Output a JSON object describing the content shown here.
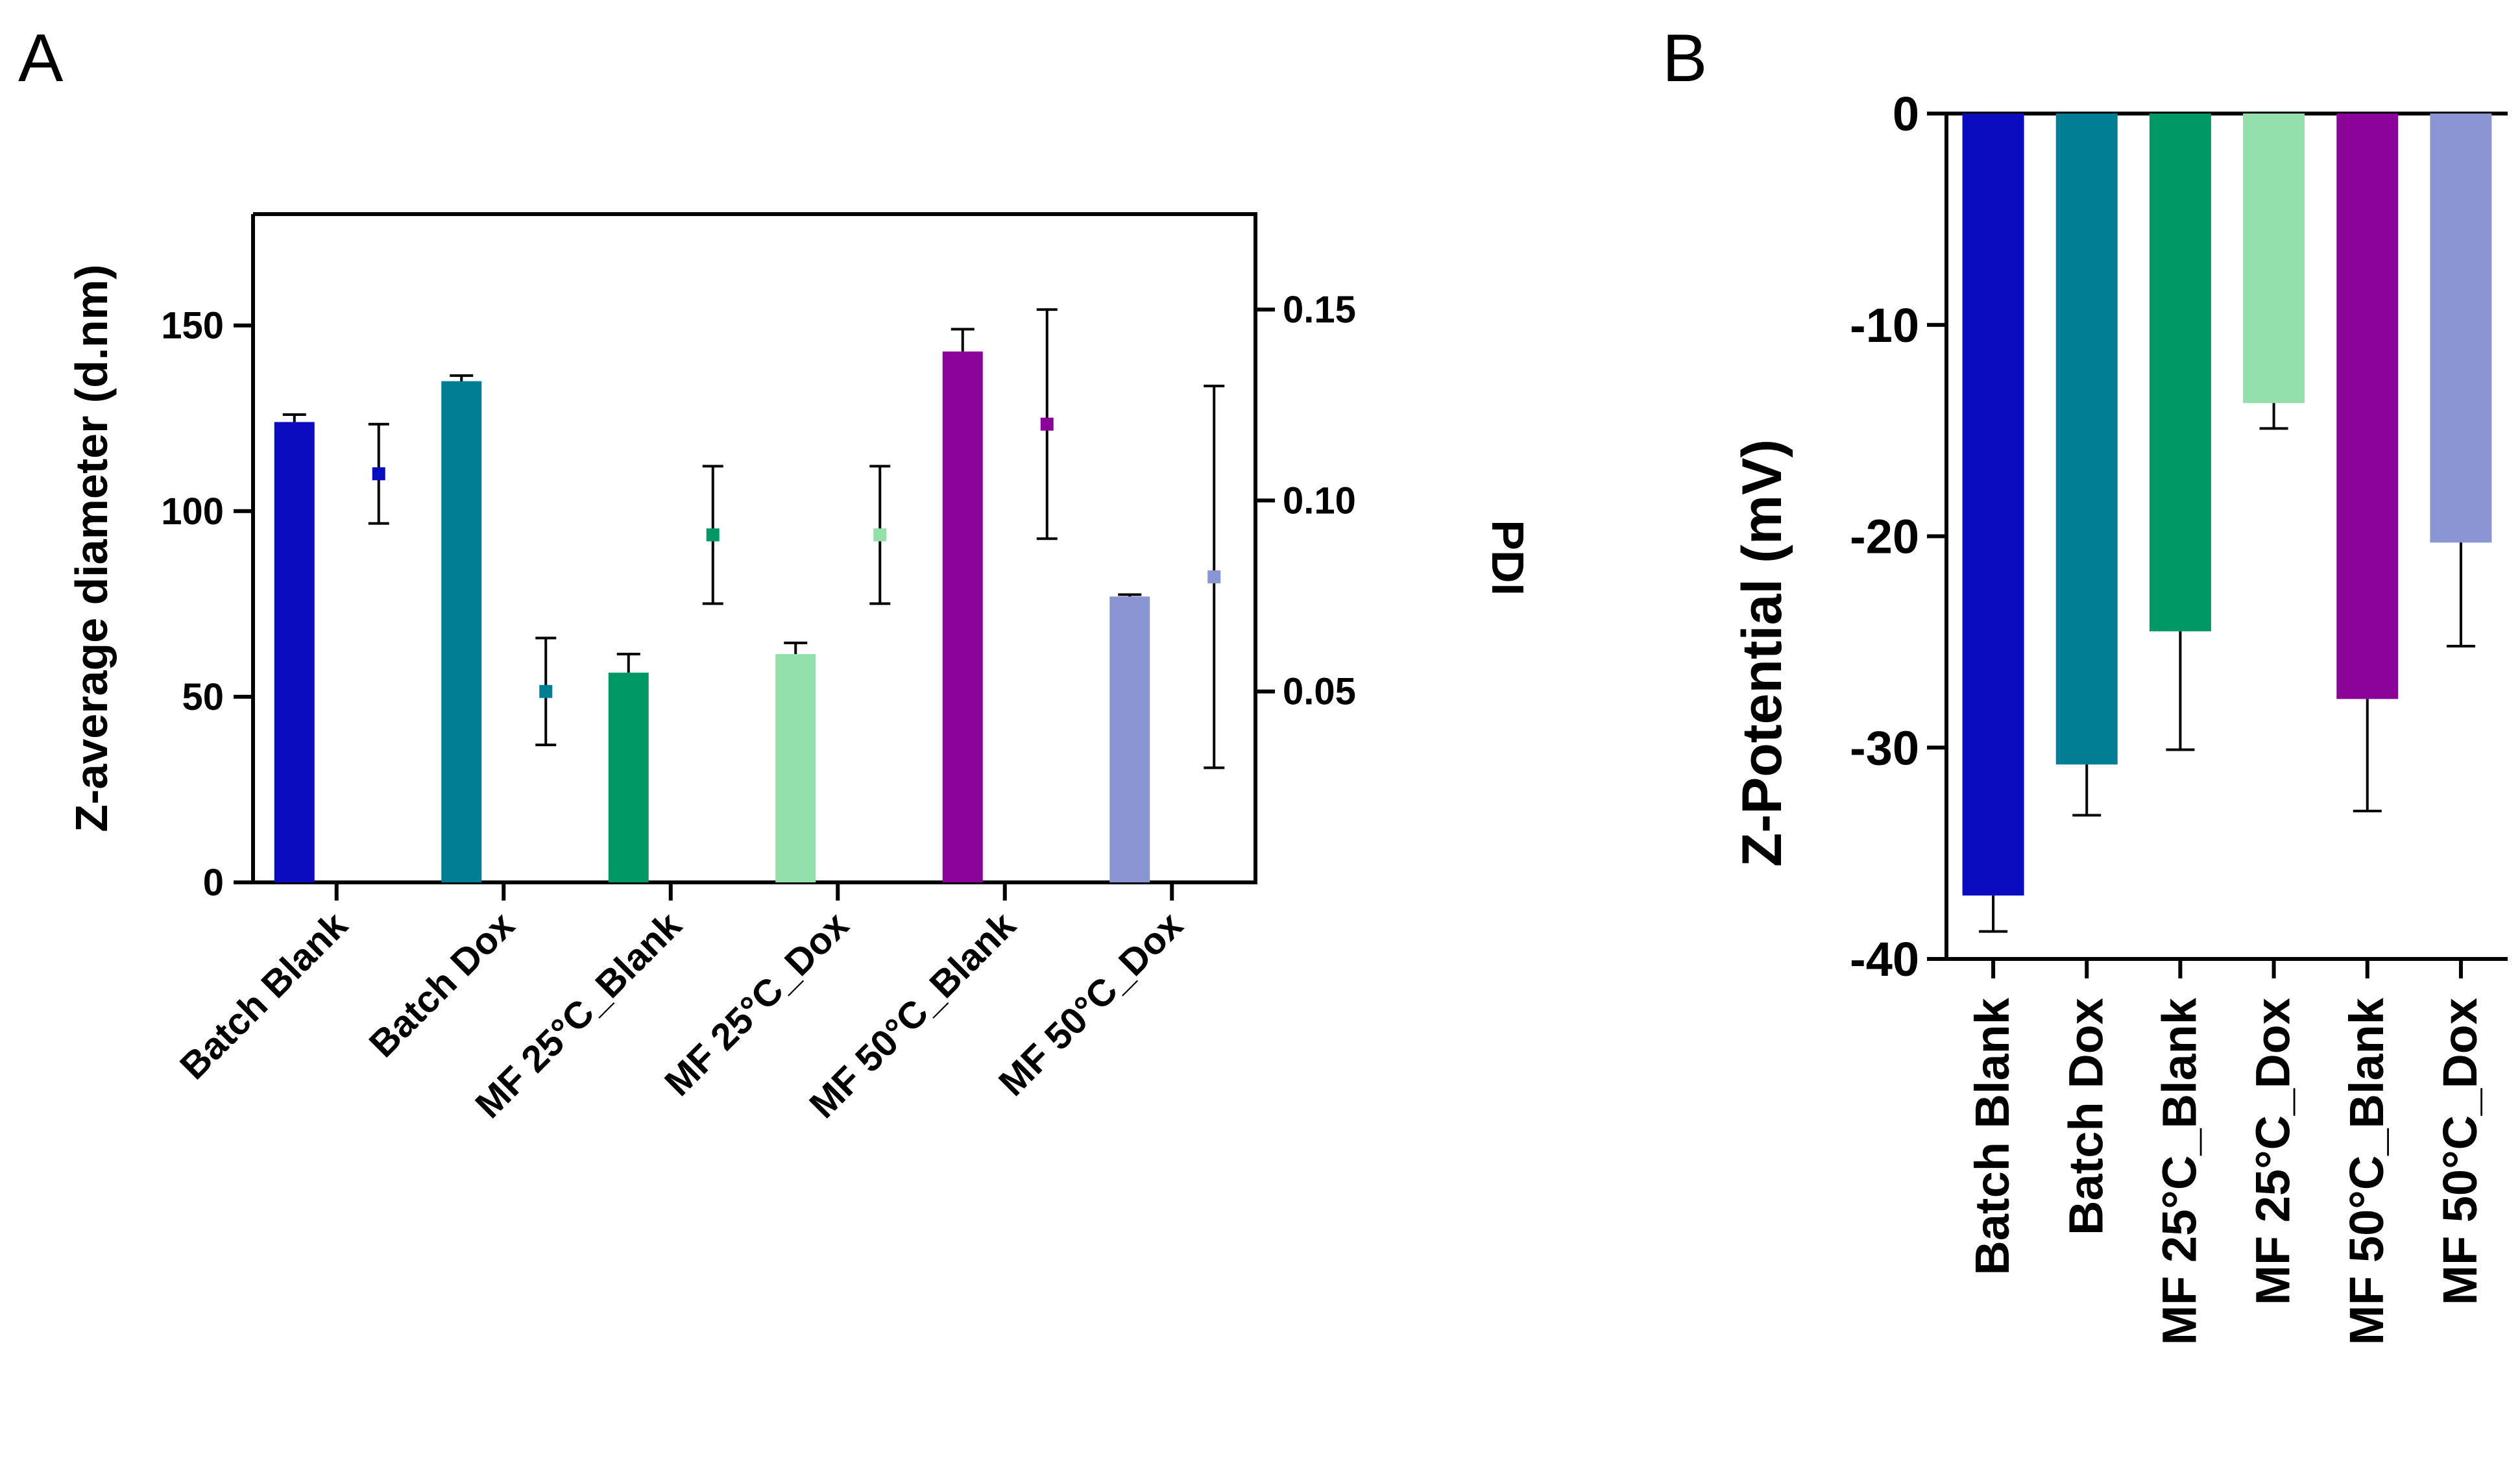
{
  "chart_data": [
    {
      "panel": "A",
      "type": "bar",
      "categories": [
        "Batch Blank",
        "Batch Dox",
        "MF 25°C_Blank",
        "MF 25°C_Dox",
        "MF 50°C_Blank",
        "MF 50°C_Dox"
      ],
      "colors": [
        "#0a0abf",
        "#007f94",
        "#009966",
        "#93e0aa",
        "#890399",
        "#8a95d4"
      ],
      "ylabel": "Z-average diameter (d.nm)",
      "ylim": [
        0,
        180
      ],
      "yticks": [
        0,
        50,
        100,
        150
      ],
      "y2label": "PDI",
      "y2lim": [
        0,
        0.175
      ],
      "y2ticks": [
        0.05,
        0.1,
        0.15
      ],
      "y2tick_labels": [
        "0.05",
        "0.10",
        "0.15"
      ],
      "series": [
        {
          "name": "Z-average diameter (d.nm)",
          "axis": "left",
          "kind": "bar",
          "values": [
            124,
            135,
            56.5,
            61.5,
            143,
            77
          ],
          "errors": [
            2,
            1.5,
            5,
            3,
            6,
            0.5
          ]
        },
        {
          "name": "PDI",
          "axis": "right",
          "kind": "point",
          "values": [
            0.107,
            0.05,
            0.091,
            0.091,
            0.12,
            0.08
          ],
          "errors": [
            0.013,
            0.014,
            0.018,
            0.018,
            0.03,
            0.05
          ]
        }
      ]
    },
    {
      "panel": "B",
      "type": "bar",
      "categories": [
        "Batch Blank",
        "Batch Dox",
        "MF 25°C_Blank",
        "MF 25°C_Dox",
        "MF 50°C_Blank",
        "MF 50°C_Dox"
      ],
      "colors": [
        "#0a0abf",
        "#007f94",
        "#009966",
        "#93e0aa",
        "#890399",
        "#8a95d4"
      ],
      "ylabel": "Z-Potential (mV)",
      "ylim": [
        -40,
        0
      ],
      "yticks": [
        0,
        -10,
        -20,
        -30,
        -40
      ],
      "series": [
        {
          "name": "Z-Potential (mV)",
          "kind": "bar",
          "values": [
            -37.0,
            -30.8,
            -24.5,
            -13.7,
            -27.7,
            -20.3
          ],
          "errors": [
            1.7,
            2.4,
            5.6,
            1.2,
            5.3,
            4.9
          ]
        }
      ]
    }
  ]
}
